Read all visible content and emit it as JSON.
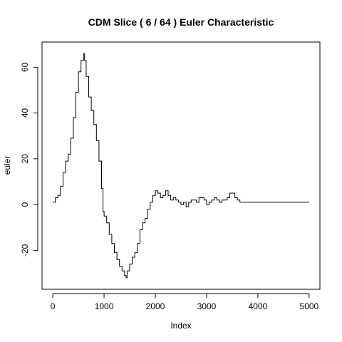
{
  "chart_data": {
    "type": "line",
    "title": "CDM Slice ( 6 / 64 ) Euler Characteristic",
    "xlabel": "Index",
    "ylabel": "euler",
    "xlim": [
      -210,
      5210
    ],
    "ylim": [
      -37,
      71
    ],
    "x_ticks": [
      0,
      1000,
      2000,
      3000,
      4000,
      5000
    ],
    "x_tick_labels": [
      "0",
      "1000",
      "2000",
      "3000",
      "4000",
      "5000"
    ],
    "y_ticks": [
      -20,
      0,
      20,
      40,
      60
    ],
    "y_tick_labels": [
      "-20",
      "0",
      "20",
      "40",
      "60"
    ],
    "grid": false,
    "legend": "none",
    "series": [
      {
        "x": [
          0,
          50,
          100,
          150,
          200,
          250,
          300,
          350,
          400,
          450,
          500,
          550,
          600,
          620,
          650,
          700,
          750,
          800,
          850,
          900,
          950,
          980,
          1000,
          1050,
          1100,
          1150,
          1200,
          1250,
          1300,
          1350,
          1400,
          1430,
          1450,
          1500,
          1550,
          1600,
          1650,
          1700,
          1750,
          1800,
          1850,
          1900,
          1950,
          2000,
          2050,
          2100,
          2150,
          2200,
          2250,
          2300,
          2350,
          2400,
          2450,
          2500,
          2550,
          2600,
          2650,
          2700,
          2750,
          2800,
          2850,
          2900,
          2950,
          3000,
          3050,
          3100,
          3150,
          3200,
          3250,
          3300,
          3350,
          3400,
          3450,
          3500,
          3550,
          3600,
          3650,
          3700,
          5000
        ],
        "y": [
          1,
          3,
          4,
          8,
          14,
          19,
          22,
          29,
          38,
          49,
          58,
          63,
          66,
          63,
          56,
          47,
          41,
          35,
          28,
          19,
          7,
          -3,
          -5,
          -8,
          -13,
          -17,
          -21,
          -24,
          -27,
          -29,
          -31,
          -32,
          -29,
          -26,
          -23,
          -21,
          -17,
          -11,
          -8,
          -6,
          -2,
          1,
          4,
          6,
          5,
          3,
          4,
          6,
          4,
          2,
          3,
          2,
          1,
          0,
          1,
          -1,
          1,
          2,
          2,
          1,
          3,
          3,
          2,
          0,
          1,
          2,
          3,
          2,
          1,
          2,
          2,
          3,
          5,
          5,
          3,
          2,
          1,
          1,
          1
        ]
      }
    ]
  }
}
